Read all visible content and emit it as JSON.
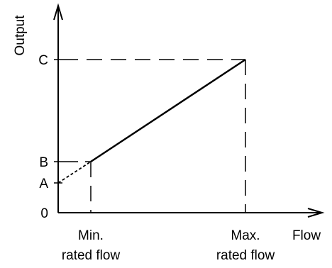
{
  "diagram": {
    "y_axis_label": "Output",
    "x_axis_label": "Flow",
    "y_ticks": [
      "C",
      "B",
      "A",
      "0"
    ],
    "x_ticks": [
      {
        "line1": "Min.",
        "line2": "rated flow"
      },
      {
        "line1": "Max.",
        "line2": "rated flow"
      }
    ]
  }
}
